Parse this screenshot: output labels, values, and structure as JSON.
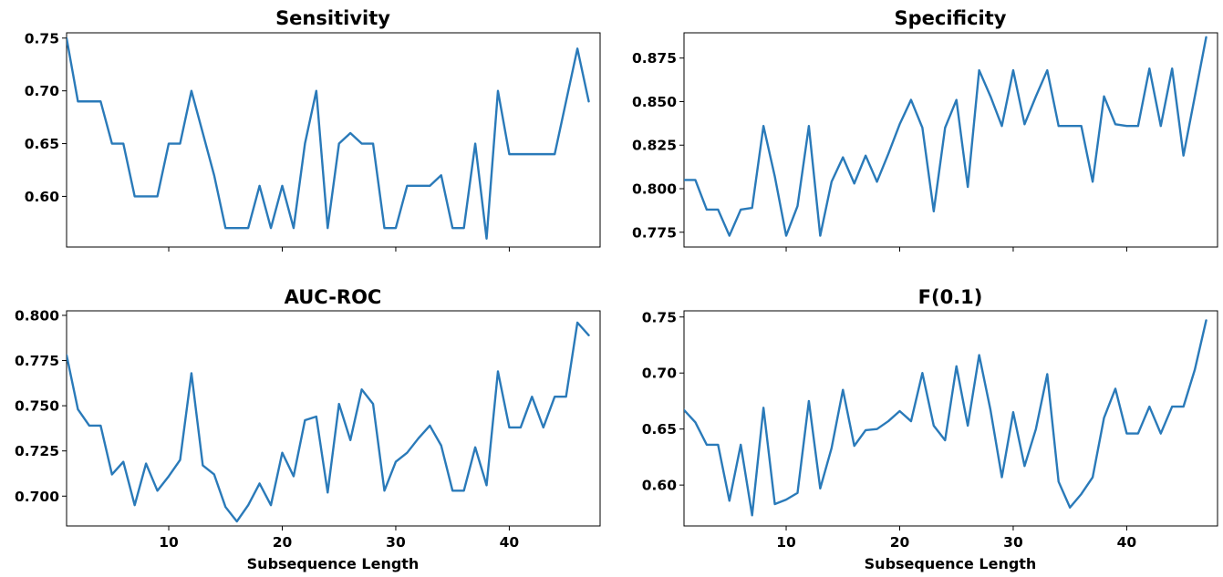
{
  "line_color": "#2a7ab9",
  "chart_data": [
    {
      "type": "line",
      "title": "Sensitivity",
      "xlabel": "",
      "ylabel": "",
      "xlim": [
        1,
        48
      ],
      "ylim": [
        0.552,
        0.755
      ],
      "xticks": [
        10,
        20,
        30,
        40
      ],
      "xtick_labels": [
        "",
        "",
        "",
        ""
      ],
      "yticks": [
        0.6,
        0.65,
        0.7,
        0.75
      ],
      "ytick_labels": [
        "0.60",
        "0.65",
        "0.70",
        "0.75"
      ],
      "x": [
        1,
        2,
        3,
        4,
        5,
        6,
        7,
        8,
        9,
        10,
        11,
        12,
        13,
        14,
        15,
        16,
        17,
        18,
        19,
        20,
        21,
        22,
        23,
        24,
        25,
        26,
        27,
        28,
        29,
        30,
        31,
        32,
        33,
        34,
        35,
        36,
        37,
        38,
        39,
        40,
        41,
        42,
        43,
        44,
        45,
        46,
        47
      ],
      "y": [
        0.75,
        0.69,
        0.69,
        0.69,
        0.65,
        0.65,
        0.6,
        0.6,
        0.6,
        0.65,
        0.65,
        0.7,
        0.66,
        0.62,
        0.57,
        0.57,
        0.57,
        0.61,
        0.57,
        0.61,
        0.57,
        0.65,
        0.7,
        0.57,
        0.65,
        0.66,
        0.65,
        0.65,
        0.57,
        0.57,
        0.61,
        0.61,
        0.61,
        0.62,
        0.57,
        0.57,
        0.65,
        0.56,
        0.7,
        0.64,
        0.64,
        0.64,
        0.64,
        0.64,
        0.69,
        0.74,
        0.69
      ]
    },
    {
      "type": "line",
      "title": "Specificity",
      "xlabel": "",
      "ylabel": "",
      "xlim": [
        1,
        48
      ],
      "ylim": [
        0.7665,
        0.8895
      ],
      "xticks": [
        10,
        20,
        30,
        40
      ],
      "xtick_labels": [
        "",
        "",
        "",
        ""
      ],
      "yticks": [
        0.775,
        0.8,
        0.825,
        0.85,
        0.875
      ],
      "ytick_labels": [
        "0.775",
        "0.800",
        "0.825",
        "0.850",
        "0.875"
      ],
      "x": [
        1,
        2,
        3,
        4,
        5,
        6,
        7,
        8,
        9,
        10,
        11,
        12,
        13,
        14,
        15,
        16,
        17,
        18,
        19,
        20,
        21,
        22,
        23,
        24,
        25,
        26,
        27,
        28,
        29,
        30,
        31,
        32,
        33,
        34,
        35,
        36,
        37,
        38,
        39,
        40,
        41,
        42,
        43,
        44,
        45,
        46,
        47
      ],
      "y": [
        0.805,
        0.805,
        0.788,
        0.788,
        0.773,
        0.788,
        0.789,
        0.836,
        0.807,
        0.773,
        0.79,
        0.836,
        0.773,
        0.804,
        0.818,
        0.803,
        0.819,
        0.804,
        0.82,
        0.837,
        0.851,
        0.835,
        0.787,
        0.835,
        0.851,
        0.801,
        0.868,
        0.853,
        0.836,
        0.868,
        0.837,
        0.853,
        0.868,
        0.836,
        0.836,
        0.836,
        0.804,
        0.853,
        0.837,
        0.836,
        0.836,
        0.869,
        0.836,
        0.869,
        0.819,
        0.853,
        0.887
      ]
    },
    {
      "type": "line",
      "title": "AUC-ROC",
      "xlabel": "Subsequence Length",
      "ylabel": "",
      "xlim": [
        1,
        48
      ],
      "ylim": [
        0.6835,
        0.8025
      ],
      "xticks": [
        10,
        20,
        30,
        40
      ],
      "xtick_labels": [
        "10",
        "20",
        "30",
        "40"
      ],
      "yticks": [
        0.7,
        0.725,
        0.75,
        0.775,
        0.8
      ],
      "ytick_labels": [
        "0.700",
        "0.725",
        "0.750",
        "0.775",
        "0.800"
      ],
      "x": [
        1,
        2,
        3,
        4,
        5,
        6,
        7,
        8,
        9,
        10,
        11,
        12,
        13,
        14,
        15,
        16,
        17,
        18,
        19,
        20,
        21,
        22,
        23,
        24,
        25,
        26,
        27,
        28,
        29,
        30,
        31,
        32,
        33,
        34,
        35,
        36,
        37,
        38,
        39,
        40,
        41,
        42,
        43,
        44,
        45,
        46,
        47
      ],
      "y": [
        0.778,
        0.748,
        0.739,
        0.739,
        0.712,
        0.719,
        0.695,
        0.718,
        0.703,
        0.711,
        0.72,
        0.768,
        0.717,
        0.712,
        0.694,
        0.686,
        0.695,
        0.707,
        0.695,
        0.724,
        0.711,
        0.742,
        0.744,
        0.702,
        0.751,
        0.731,
        0.759,
        0.751,
        0.703,
        0.719,
        0.724,
        0.732,
        0.739,
        0.728,
        0.703,
        0.703,
        0.727,
        0.706,
        0.769,
        0.738,
        0.738,
        0.755,
        0.738,
        0.755,
        0.755,
        0.796,
        0.789
      ]
    },
    {
      "type": "line",
      "title": "F(0.1)",
      "xlabel": "Subsequence Length",
      "ylabel": "",
      "xlim": [
        1,
        48
      ],
      "ylim": [
        0.5635,
        0.7555
      ],
      "xticks": [
        10,
        20,
        30,
        40
      ],
      "xtick_labels": [
        "10",
        "20",
        "30",
        "40"
      ],
      "yticks": [
        0.6,
        0.65,
        0.7,
        0.75
      ],
      "ytick_labels": [
        "0.60",
        "0.65",
        "0.70",
        "0.75"
      ],
      "x": [
        1,
        2,
        3,
        4,
        5,
        6,
        7,
        8,
        9,
        10,
        11,
        12,
        13,
        14,
        15,
        16,
        17,
        18,
        19,
        20,
        21,
        22,
        23,
        24,
        25,
        26,
        27,
        28,
        29,
        30,
        31,
        32,
        33,
        34,
        35,
        36,
        37,
        38,
        39,
        40,
        41,
        42,
        43,
        44,
        45,
        46,
        47
      ],
      "y": [
        0.667,
        0.656,
        0.636,
        0.636,
        0.586,
        0.636,
        0.573,
        0.669,
        0.583,
        0.587,
        0.593,
        0.675,
        0.597,
        0.633,
        0.685,
        0.635,
        0.649,
        0.65,
        0.657,
        0.666,
        0.657,
        0.7,
        0.653,
        0.64,
        0.706,
        0.653,
        0.716,
        0.667,
        0.607,
        0.665,
        0.617,
        0.65,
        0.699,
        0.603,
        0.58,
        0.592,
        0.607,
        0.66,
        0.686,
        0.646,
        0.646,
        0.67,
        0.646,
        0.67,
        0.67,
        0.703,
        0.747
      ]
    }
  ]
}
